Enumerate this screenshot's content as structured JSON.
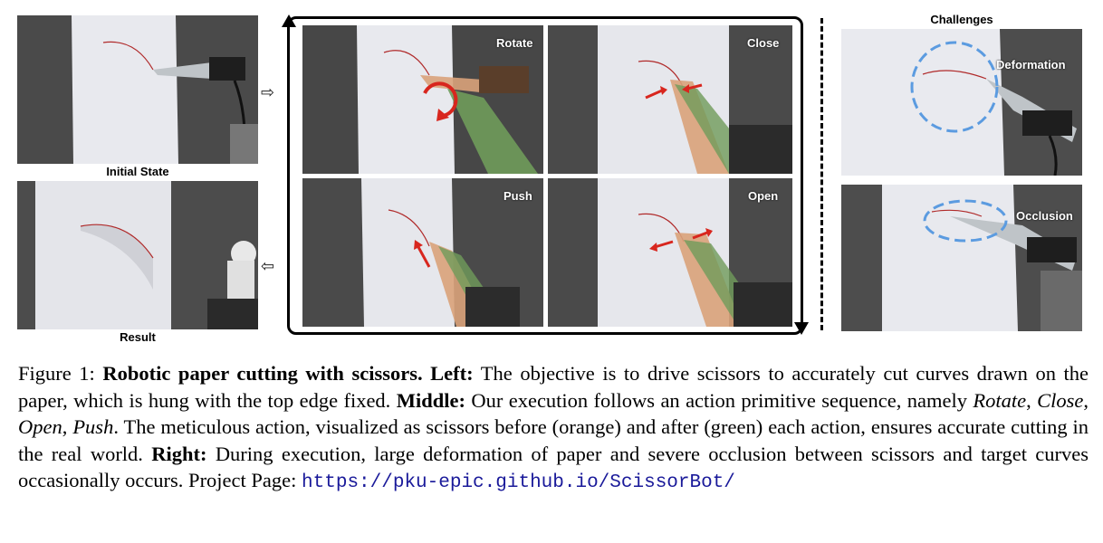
{
  "labels": {
    "initial_state": "Initial State",
    "result": "Result",
    "rotate": "Rotate",
    "close": "Close",
    "push": "Push",
    "open": "Open",
    "challenges": "Challenges",
    "deformation": "Deformation",
    "occlusion": "Occlusion"
  },
  "caption": {
    "figure_label": "Figure 1:",
    "bold_title": "Robotic paper cutting with scissors.",
    "left_label": "Left:",
    "left_text": "The objective is to drive scissors to accurately cut curves drawn on the paper, which is hung with the top edge fixed.",
    "middle_label": "Middle:",
    "middle_text_a": "Our execution follows an action primitive sequence, namely",
    "seq_rotate": "Rotate",
    "seq_close": "Close",
    "seq_open": "Open",
    "seq_push": "Push",
    "middle_text_b": ". The meticulous action, visualized as scissors before (orange) and after (green) each action, ensures accurate cutting in the real world.",
    "right_label": "Right:",
    "right_text": "During execution, large deformation of paper and severe occlusion between scissors and target curves occasionally occurs. Project Page:",
    "url": "https://pku-epic.github.io/ScissorBot/"
  },
  "colors": {
    "background": "#ffffff",
    "photo_dark": "#3e3e3e",
    "paper": "#e8e9ee",
    "orange_scissor": "#d9a27a",
    "green_scissor": "#6f9b5a",
    "red_arrow": "#d8261e",
    "blue_dashed": "#5b9be0",
    "url_color": "#1a1a9a"
  }
}
